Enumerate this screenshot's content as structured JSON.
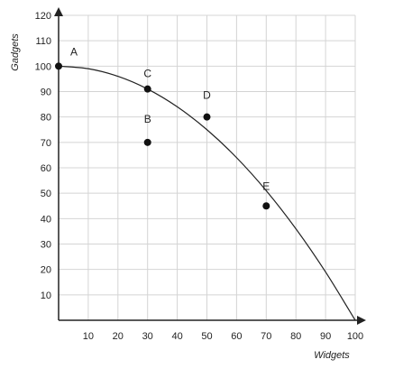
{
  "chart_data": {
    "type": "scatter",
    "title": "",
    "xlabel": "Widgets",
    "ylabel": "Gadgets",
    "xlim": [
      0,
      100
    ],
    "ylim": [
      0,
      120
    ],
    "xticks": [
      10,
      20,
      30,
      40,
      50,
      60,
      70,
      80,
      90,
      100
    ],
    "yticks": [
      10,
      20,
      30,
      40,
      50,
      60,
      70,
      80,
      90,
      100,
      110,
      120
    ],
    "grid": true,
    "curve": {
      "x": [
        0,
        10,
        20,
        30,
        40,
        50,
        60,
        70,
        80,
        90,
        100
      ],
      "y": [
        100,
        99,
        96,
        91,
        84,
        75,
        64,
        51,
        36,
        19,
        0
      ]
    },
    "points": [
      {
        "label": "A",
        "x": 0,
        "y": 100
      },
      {
        "label": "C",
        "x": 30,
        "y": 91
      },
      {
        "label": "B",
        "x": 30,
        "y": 70
      },
      {
        "label": "D",
        "x": 50,
        "y": 80
      },
      {
        "label": "E",
        "x": 70,
        "y": 45
      }
    ]
  }
}
